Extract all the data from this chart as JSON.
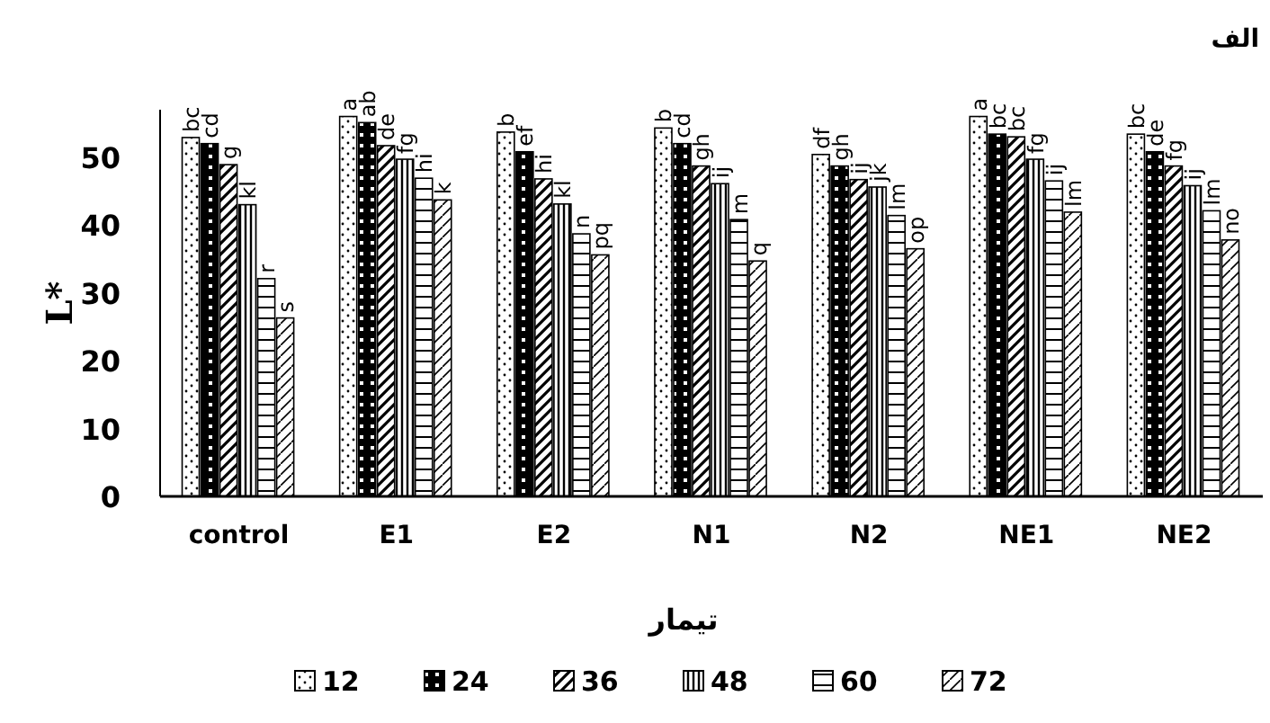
{
  "chart_data": {
    "type": "bar",
    "title": "الف",
    "xlabel": "تیمار",
    "ylabel": "L*",
    "categories": [
      "control",
      "E1",
      "E2",
      "N1",
      "N2",
      "NE1",
      "NE2"
    ],
    "ylim": [
      0,
      57
    ],
    "yticks": [
      0,
      10,
      20,
      30,
      40,
      50
    ],
    "grid": false,
    "legend": "bottom",
    "series": [
      {
        "name": "12",
        "color": "#000000",
        "values": [
          52.9,
          56.0,
          53.7,
          54.3,
          50.4,
          56.0,
          53.4
        ],
        "value_labels": [
          "bc",
          "a",
          "b",
          "b",
          "df",
          "a",
          "bc"
        ]
      },
      {
        "name": "24",
        "color": "#000000",
        "values": [
          52.0,
          55.1,
          50.8,
          52.0,
          48.7,
          53.4,
          50.8
        ],
        "value_labels": [
          "cd",
          "ab",
          "ef",
          "cd",
          "gh",
          "bc",
          "de"
        ]
      },
      {
        "name": "36",
        "color": "#000000",
        "values": [
          48.9,
          51.7,
          46.8,
          48.7,
          46.7,
          53.0,
          48.7
        ],
        "value_labels": [
          "g",
          "de",
          "hi",
          "gh",
          "ij",
          "bc",
          "fg"
        ]
      },
      {
        "name": "48",
        "color": "#000000",
        "values": [
          43.0,
          49.7,
          43.1,
          46.1,
          45.6,
          49.7,
          45.8
        ],
        "value_labels": [
          "kl",
          "fg",
          "kl",
          "ij",
          "jk",
          "fg",
          "ij"
        ]
      },
      {
        "name": "60",
        "color": "#000000",
        "values": [
          32.1,
          46.9,
          38.7,
          40.8,
          41.4,
          46.5,
          42.1
        ],
        "value_labels": [
          "r",
          "hi",
          "n",
          "m",
          "lm",
          "ij",
          "lm"
        ]
      },
      {
        "name": "72",
        "color": "#000000",
        "values": [
          26.3,
          43.7,
          35.6,
          34.7,
          36.5,
          41.9,
          37.8
        ],
        "value_labels": [
          "s",
          "k",
          "pq",
          "q",
          "op",
          "lm",
          "no"
        ]
      }
    ]
  }
}
